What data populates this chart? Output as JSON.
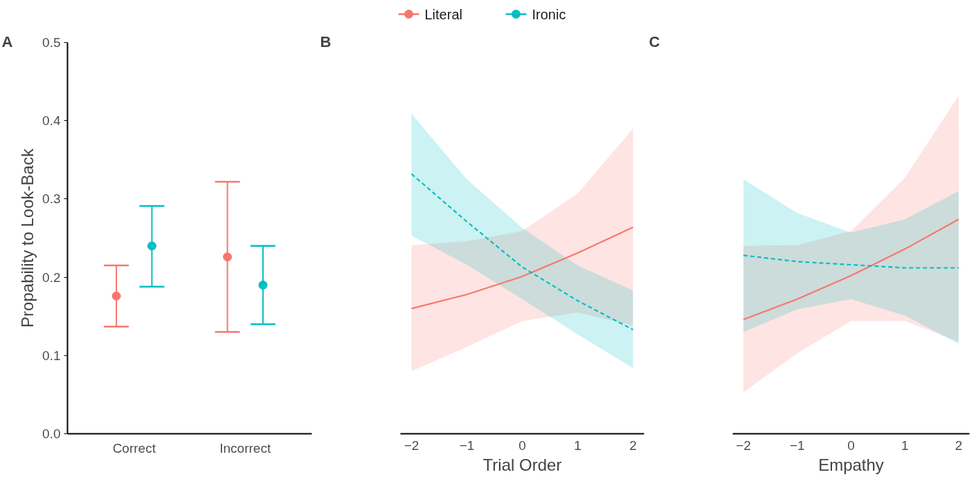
{
  "chart_data": [
    {
      "type": "scatter",
      "title": "A",
      "ylabel": "Propability to Look-Back",
      "categories": [
        "Correct",
        "Incorrect"
      ],
      "ylim": [
        0,
        0.5
      ],
      "yticks": [
        {
          "value": 0,
          "label": "0.0"
        },
        0.1,
        0.2,
        0.3,
        0.4,
        0.5
      ],
      "grid": false,
      "marker": "circle",
      "legend": "top",
      "series": [
        {
          "name": "Literal",
          "color": "#f8766d",
          "values": [
            0.176,
            0.226
          ],
          "errors": [
            [
              0.137,
              0.215
            ],
            [
              0.13,
              0.322
            ]
          ]
        },
        {
          "name": "Ironic",
          "color": "#00bfc4",
          "values": [
            0.24,
            0.19
          ],
          "errors": [
            [
              0.188,
              0.291
            ],
            [
              0.14,
              0.24
            ]
          ]
        }
      ]
    },
    {
      "type": "line",
      "title": "B",
      "xlabel": "Trial Order",
      "x": [
        -2,
        -1,
        0,
        1,
        2
      ],
      "xlim": [
        -2.2,
        2.2
      ],
      "xticks": [
        -2,
        -1,
        0,
        1,
        2
      ],
      "ylim": [
        0,
        0.5
      ],
      "tick_labels": "x",
      "grid": false,
      "series": [
        {
          "color": "#f8766d",
          "line_style": "solid",
          "values": [
            0.16,
            0.178,
            0.201,
            0.231,
            0.264
          ],
          "lower": [
            0.08,
            0.111,
            0.144,
            0.155,
            0.138
          ],
          "upper": [
            0.241,
            0.246,
            0.259,
            0.307,
            0.39
          ]
        },
        {
          "color": "#00bfc4",
          "line_style": "dashed",
          "values": [
            0.332,
            0.271,
            0.213,
            0.17,
            0.133
          ],
          "lower": [
            0.253,
            0.216,
            0.172,
            0.127,
            0.084
          ],
          "upper": [
            0.409,
            0.325,
            0.263,
            0.215,
            0.183
          ]
        }
      ]
    },
    {
      "type": "line",
      "title": "C",
      "xlabel": "Empathy",
      "x": [
        -2,
        -1,
        0,
        1,
        2
      ],
      "xlim": [
        -2.2,
        2.2
      ],
      "xticks": [
        -2,
        -1,
        0,
        1,
        2
      ],
      "ylim": [
        0,
        0.5
      ],
      "tick_labels": "x",
      "grid": false,
      "series": [
        {
          "color": "#f8766d",
          "line_style": "solid",
          "values": [
            0.146,
            0.172,
            0.202,
            0.236,
            0.274
          ],
          "lower": [
            0.053,
            0.103,
            0.144,
            0.144,
            0.118
          ],
          "upper": [
            0.24,
            0.241,
            0.259,
            0.327,
            0.432
          ]
        },
        {
          "color": "#00bfc4",
          "line_style": "dashed",
          "values": [
            0.228,
            0.22,
            0.216,
            0.212,
            0.212
          ],
          "lower": [
            0.13,
            0.159,
            0.172,
            0.151,
            0.115
          ],
          "upper": [
            0.325,
            0.282,
            0.257,
            0.274,
            0.31
          ]
        }
      ]
    }
  ]
}
